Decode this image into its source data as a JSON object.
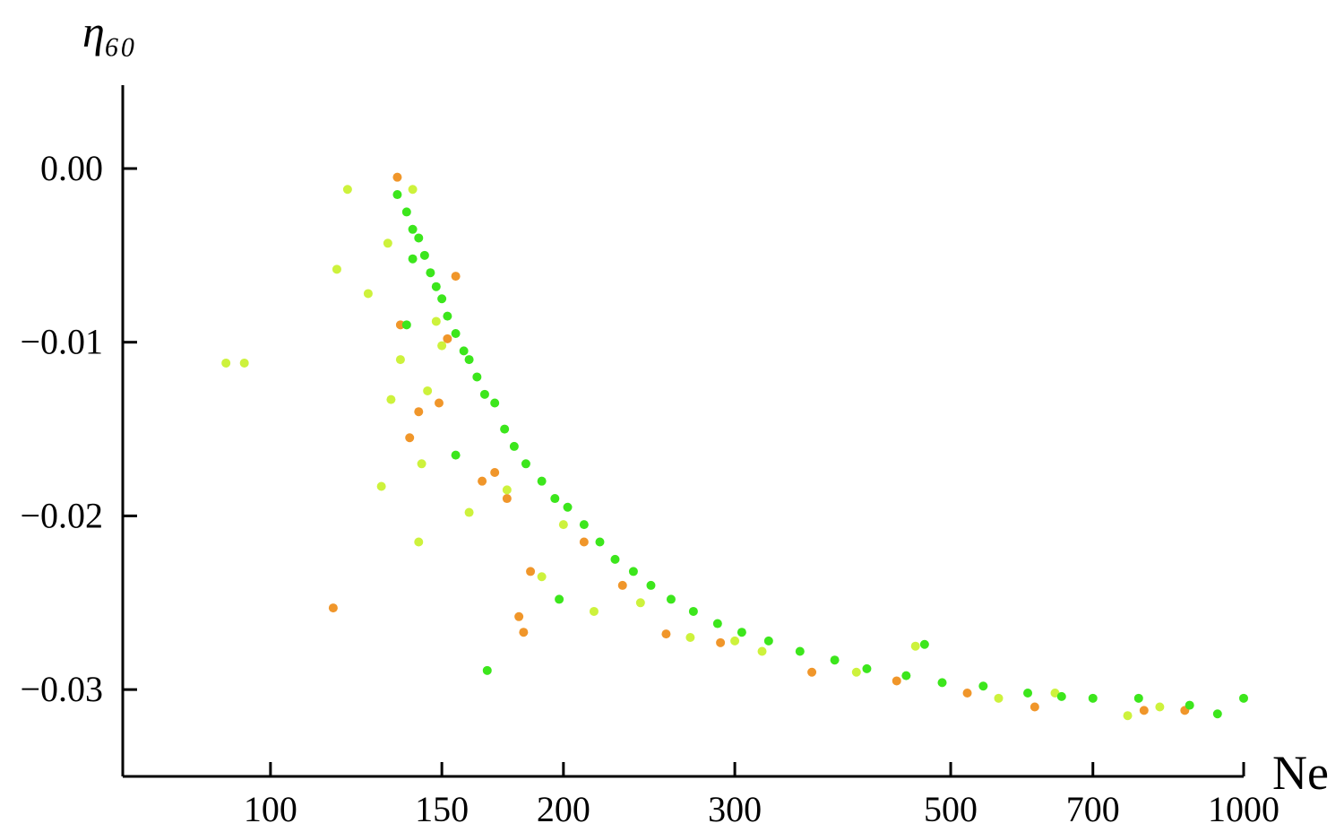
{
  "chart_data": {
    "type": "scatter",
    "x_label": "Ne",
    "y_label": "η₆₀",
    "xscale": "log",
    "xlim": [
      70.5,
      1000
    ],
    "ylim": [
      -0.035,
      0.0048
    ],
    "xticks": [
      100,
      150,
      200,
      300,
      500,
      700,
      1000
    ],
    "yticks": [
      {
        "value": 0,
        "label": "0.00"
      },
      {
        "value": -0.01,
        "label": "−0.01"
      },
      {
        "value": -0.02,
        "label": "−0.02"
      },
      {
        "value": -0.03,
        "label": "−0.03"
      }
    ],
    "series": [
      {
        "color": "#f0962a",
        "x": [
          116,
          135,
          136,
          139,
          142,
          149,
          152,
          155,
          165,
          170,
          180,
          182,
          185,
          210,
          230,
          255,
          290,
          360,
          440,
          520,
          610,
          790,
          870,
          175
        ],
        "values": [
          -0.0253,
          -0.0005,
          -0.009,
          -0.0155,
          -0.014,
          -0.0135,
          -0.0098,
          -0.0062,
          -0.018,
          -0.0175,
          -0.0258,
          -0.0267,
          -0.0232,
          -0.0215,
          -0.024,
          -0.0268,
          -0.0273,
          -0.029,
          -0.0295,
          -0.0302,
          -0.031,
          -0.0312,
          -0.0312,
          -0.019
        ]
      },
      {
        "color": "#cdf23c",
        "x": [
          90,
          94,
          117,
          120,
          126,
          130,
          132,
          133,
          136,
          140,
          143,
          142,
          145,
          148,
          160,
          175,
          190,
          215,
          240,
          270,
          320,
          400,
          460,
          560,
          640,
          760,
          820,
          150,
          200,
          300
        ],
        "values": [
          -0.0112,
          -0.0112,
          -0.0058,
          -0.0012,
          -0.0072,
          -0.0183,
          -0.0043,
          -0.0133,
          -0.011,
          -0.0012,
          -0.017,
          -0.0215,
          -0.0128,
          -0.0088,
          -0.0198,
          -0.0185,
          -0.0235,
          -0.0255,
          -0.025,
          -0.027,
          -0.0278,
          -0.029,
          -0.0275,
          -0.0305,
          -0.0302,
          -0.0315,
          -0.031,
          -0.0102,
          -0.0205,
          -0.0272
        ]
      },
      {
        "color": "#3ce61c",
        "x": [
          135,
          138,
          140,
          142,
          144,
          146,
          148,
          150,
          152,
          155,
          158,
          160,
          163,
          166,
          170,
          174,
          178,
          183,
          190,
          196,
          202,
          210,
          218,
          226,
          236,
          246,
          258,
          272,
          288,
          305,
          325,
          350,
          380,
          410,
          450,
          490,
          540,
          600,
          650,
          700,
          780,
          880,
          940,
          1000,
          140,
          138,
          167,
          198,
          155,
          470
        ],
        "values": [
          -0.0015,
          -0.0025,
          -0.0035,
          -0.004,
          -0.005,
          -0.006,
          -0.0068,
          -0.0075,
          -0.0085,
          -0.0095,
          -0.0105,
          -0.011,
          -0.012,
          -0.013,
          -0.0135,
          -0.015,
          -0.016,
          -0.017,
          -0.018,
          -0.019,
          -0.0195,
          -0.0205,
          -0.0215,
          -0.0225,
          -0.0232,
          -0.024,
          -0.0248,
          -0.0255,
          -0.0262,
          -0.0267,
          -0.0272,
          -0.0278,
          -0.0283,
          -0.0288,
          -0.0292,
          -0.0296,
          -0.0298,
          -0.0302,
          -0.0304,
          -0.0305,
          -0.0305,
          -0.0309,
          -0.0314,
          -0.0305,
          -0.0052,
          -0.009,
          -0.0289,
          -0.0248,
          -0.0165,
          -0.0274
        ]
      }
    ]
  }
}
